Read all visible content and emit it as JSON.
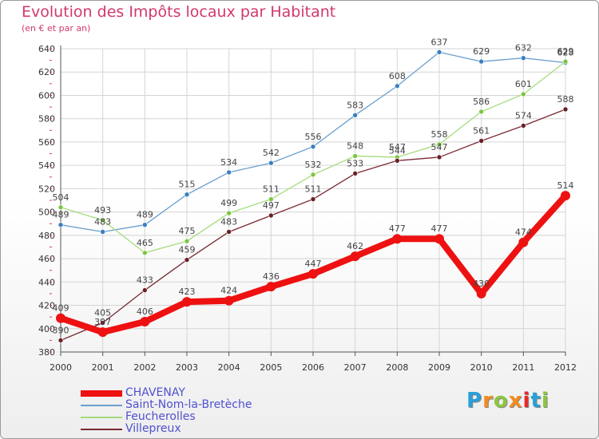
{
  "title": "Evolution des Impôts locaux par Habitant",
  "subtitle": "(en € et par an)",
  "logo": {
    "text": "Proxiti",
    "letters": [
      "P",
      "r",
      "o",
      "x",
      "i",
      "t",
      "i"
    ],
    "colors": [
      "#2a9fd8",
      "#f28c1e",
      "#8cc63f",
      "#f28c1e",
      "#e8292a",
      "#2a9fd8",
      "#8cc63f"
    ]
  },
  "chart_data": {
    "type": "line",
    "title": "Evolution des Impôts locaux par Habitant",
    "subtitle": "(en € et par an)",
    "xlabel": "",
    "ylabel": "",
    "x": [
      "2000",
      "2001",
      "2002",
      "2003",
      "2004",
      "2005",
      "2006",
      "2007",
      "2008",
      "2009",
      "2010",
      "2011",
      "2012"
    ],
    "ylim": [
      380,
      640
    ],
    "yticks": [
      380,
      400,
      420,
      440,
      460,
      480,
      500,
      520,
      540,
      560,
      580,
      600,
      620,
      640
    ],
    "grid": true,
    "legend_position": "bottom-left",
    "series": [
      {
        "name": "CHAVENAY",
        "color": "#ee1111",
        "width": 8,
        "values": [
          409,
          397,
          406,
          423,
          424,
          436,
          447,
          462,
          477,
          477,
          430,
          474,
          514
        ],
        "labels": [
          "409",
          "397",
          "406",
          "423",
          "424",
          "436",
          "447",
          "462",
          "477",
          "477",
          "430",
          "474",
          "514"
        ]
      },
      {
        "name": "Saint-Nom-la-Bretèche",
        "color": "#6a9fcf",
        "width": 1.3,
        "marker": "#3a7fc2",
        "values": [
          489,
          483,
          489,
          515,
          534,
          542,
          556,
          583,
          608,
          637,
          629,
          632,
          628
        ],
        "labels": [
          "489",
          "483",
          "489",
          "515",
          "534",
          "542",
          "556",
          "583",
          "608",
          "637",
          "629",
          "632",
          "628"
        ]
      },
      {
        "name": "Feucherolles",
        "color": "#a4dc7c",
        "width": 1.3,
        "marker": "#7cc63f",
        "values": [
          504,
          493,
          465,
          475,
          499,
          511,
          532,
          548,
          547,
          558,
          586,
          601,
          629
        ],
        "labels": [
          "504",
          "493",
          "465",
          "475",
          "499",
          "511",
          "532",
          "548",
          "547",
          "558",
          "586",
          "601",
          "629"
        ]
      },
      {
        "name": "Villepreux",
        "color": "#7a2a33",
        "width": 1.3,
        "marker": "#6b1f27",
        "values": [
          390,
          405,
          433,
          459,
          483,
          497,
          511,
          533,
          544,
          547,
          561,
          574,
          588
        ],
        "labels": [
          "390",
          "405",
          "433",
          "459",
          "483",
          "497",
          "511",
          "533",
          "544",
          "547",
          "561",
          "574",
          "588"
        ]
      }
    ]
  }
}
